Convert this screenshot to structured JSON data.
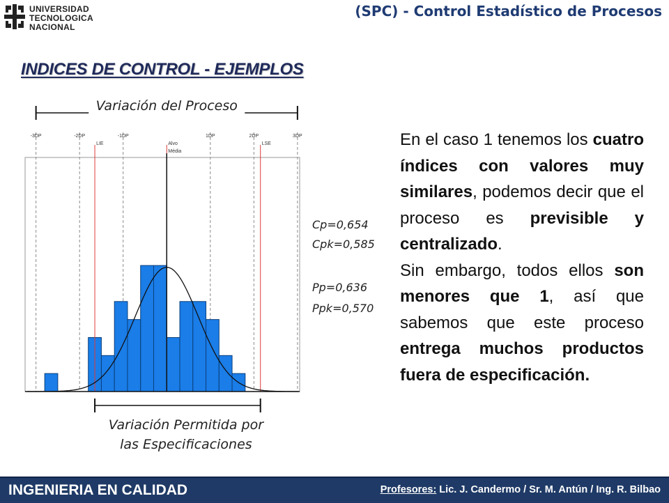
{
  "header": {
    "logo_lines": [
      "UNIVERSIDAD",
      "TECNOLOGICA",
      "NACIONAL"
    ],
    "title": "(SPC) - Control Estadístico de Procesos"
  },
  "section_title": "INDICES DE CONTROL - EJEMPLOS",
  "chart_data": {
    "type": "bar",
    "title": "Variación del Proceso",
    "bottom_caption_line1": "Variación Permitida por",
    "bottom_caption_line2": "las Especificaciones",
    "x_ticks": [
      {
        "label": "-3DP",
        "x": -3
      },
      {
        "label": "-2DP",
        "x": -2
      },
      {
        "label": "-1DP",
        "x": -1
      },
      {
        "label": "1DP",
        "x": 1
      },
      {
        "label": "2DP",
        "x": 2
      },
      {
        "label": "3DP",
        "x": 3
      }
    ],
    "spec_lines": [
      {
        "label": "LIE",
        "x": -1.65
      },
      {
        "label": "Alvo",
        "x": 0
      },
      {
        "label": "LSE",
        "x": 2.15
      }
    ],
    "mean": {
      "label": "Média",
      "x": 0
    },
    "ylim": [
      0,
      13
    ],
    "bars": [
      {
        "x0": -2.8,
        "x1": -2.5,
        "value": 1
      },
      {
        "x0": -1.8,
        "x1": -1.5,
        "value": 3
      },
      {
        "x0": -1.5,
        "x1": -1.2,
        "value": 2
      },
      {
        "x0": -1.2,
        "x1": -0.9,
        "value": 5
      },
      {
        "x0": -0.9,
        "x1": -0.6,
        "value": 4
      },
      {
        "x0": -0.6,
        "x1": -0.3,
        "value": 7
      },
      {
        "x0": -0.3,
        "x1": 0.0,
        "value": 7
      },
      {
        "x0": 0.0,
        "x1": 0.3,
        "value": 3
      },
      {
        "x0": 0.3,
        "x1": 0.6,
        "value": 5
      },
      {
        "x0": 0.6,
        "x1": 0.9,
        "value": 5
      },
      {
        "x0": 0.9,
        "x1": 1.2,
        "value": 4
      },
      {
        "x0": 1.2,
        "x1": 1.5,
        "value": 2
      },
      {
        "x0": 1.5,
        "x1": 1.8,
        "value": 1
      }
    ],
    "curve_peak": 6.9,
    "indices": [
      {
        "label": "Cp=0,654"
      },
      {
        "label": "Cpk=0,585"
      },
      {
        "label": "Pp=0,636"
      },
      {
        "label": "Ppk=0,570"
      }
    ],
    "colors": {
      "bar": "#1a7de8",
      "spec_line": "#e03a3a",
      "curve": "#111111"
    }
  },
  "body": {
    "p1_a": "En el caso 1 tenemos los ",
    "p1_b": "cuatro índices con valores muy similares",
    "p1_c": ", podemos decir que el proceso es ",
    "p1_d": "previsible y centralizado",
    "p1_e": ".",
    "p2_a": "Sin embargo, todos ellos ",
    "p2_b": "son menores que 1",
    "p2_c": ", así que sabemos que este proceso ",
    "p2_d": "entrega muchos productos fuera de especificación."
  },
  "footer": {
    "left": "INGENIERIA EN CALIDAD",
    "right_label": "Profesores:",
    "right_names": " Lic. J. Candermo / Sr. M. Antún / Ing. R. Bilbao"
  }
}
